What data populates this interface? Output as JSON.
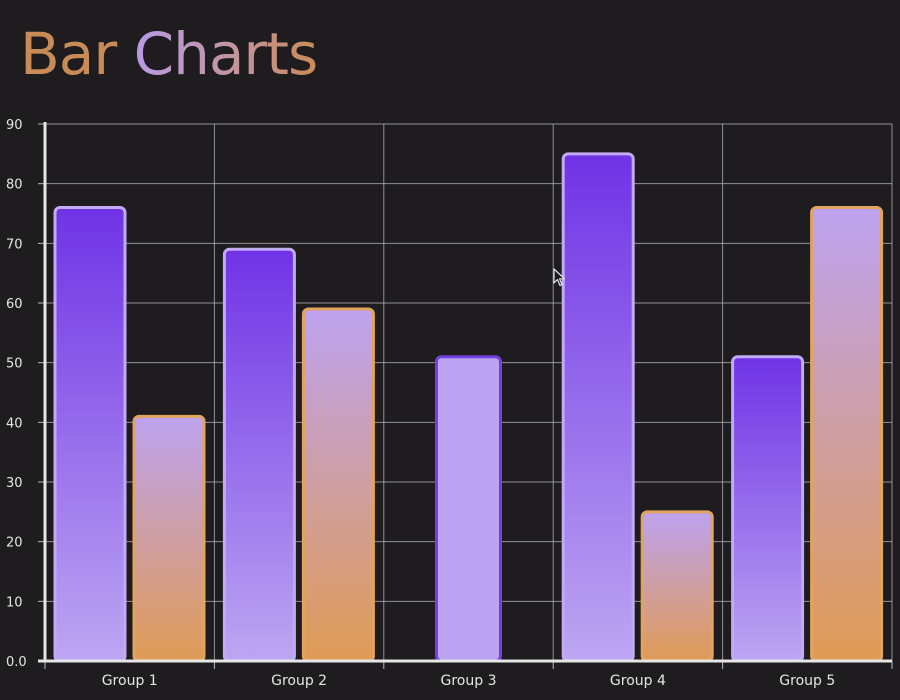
{
  "title_word1": "Bar",
  "title_word2": "Charts",
  "colors": {
    "background": "#1e1c1f",
    "grid": "#b8b8bc",
    "purple_top": "#6f33e6",
    "purple_bottom": "#bda6f2",
    "purple_border": "#c3aaf5",
    "orange_top": "#bda2f0",
    "orange_bottom": "#e09b55",
    "orange_border": "#e2a35c",
    "flat_fill": "#bba3f2",
    "flat_border": "#7440e0"
  },
  "chart_data": {
    "type": "bar",
    "categories": [
      "Group 1",
      "Group 2",
      "Group 3",
      "Group 4",
      "Group 5"
    ],
    "series": [
      {
        "values": [
          76,
          69,
          51,
          85,
          51
        ]
      },
      {
        "values": [
          41,
          59,
          null,
          25,
          76
        ]
      }
    ],
    "ylim": [
      0,
      90
    ],
    "yticks": [
      "0.0",
      "10",
      "20",
      "30",
      "40",
      "50",
      "60",
      "70",
      "80",
      "90"
    ],
    "grid": true
  }
}
